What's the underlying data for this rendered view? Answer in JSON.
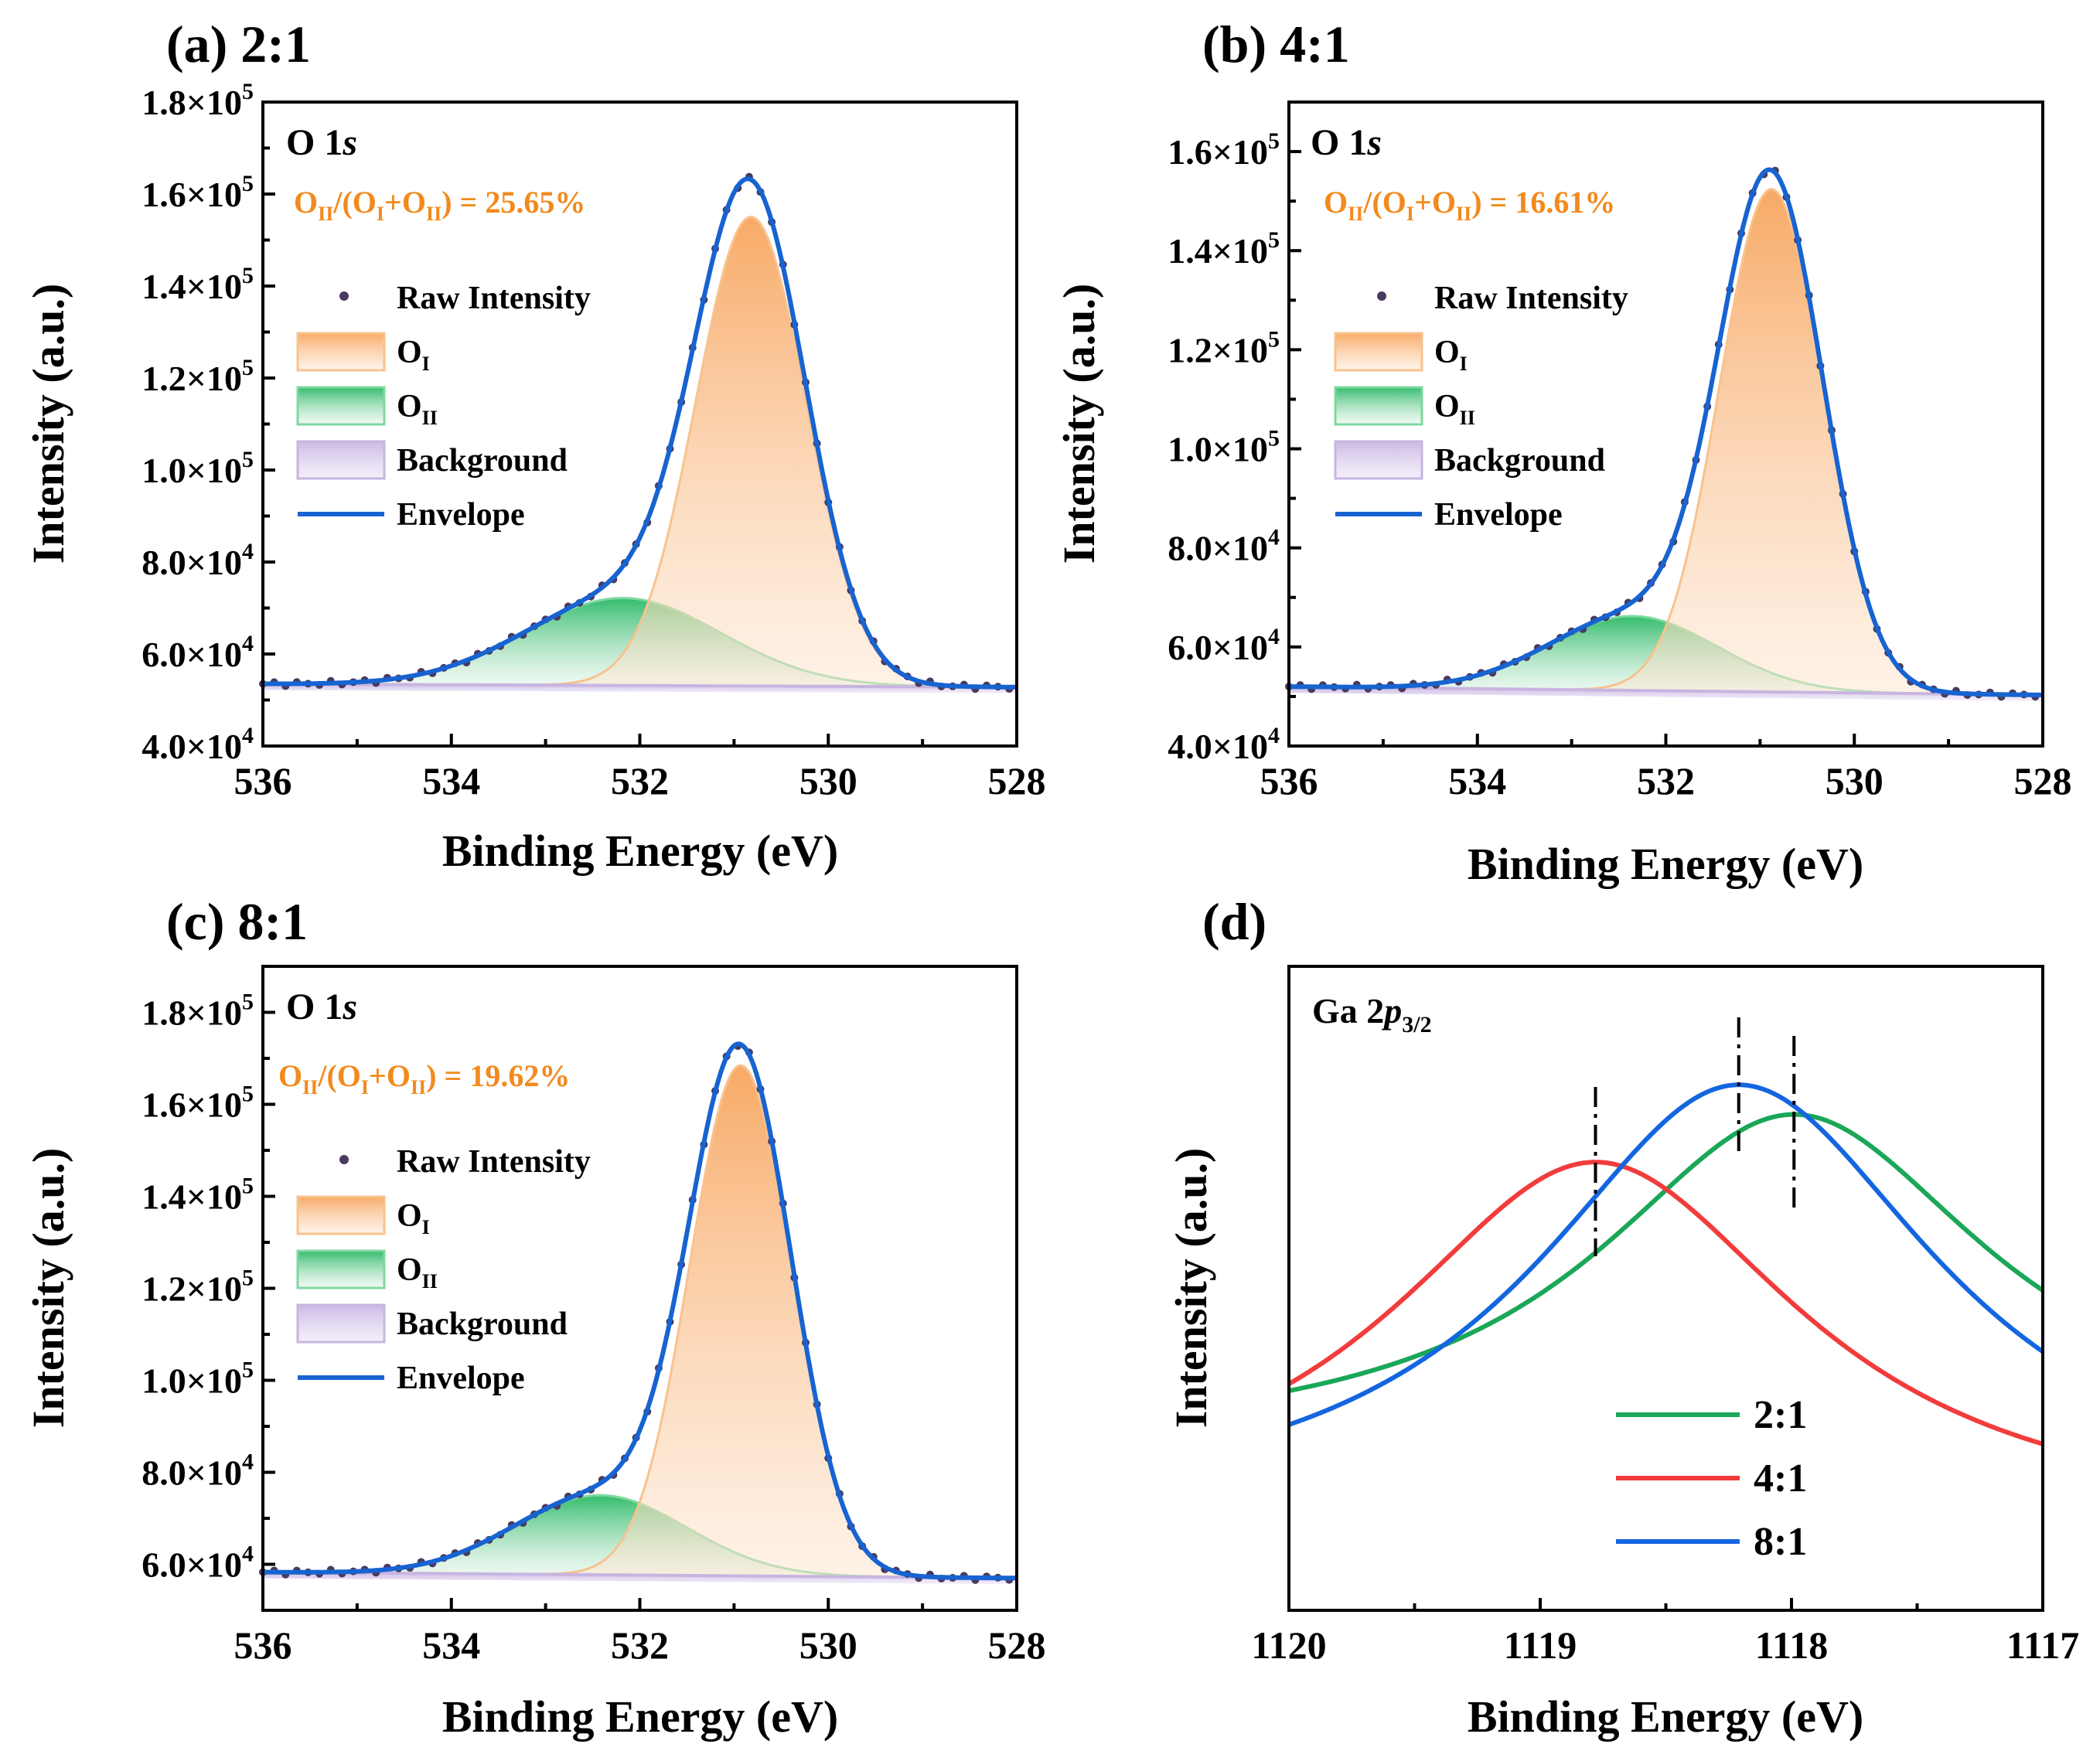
{
  "figure": {
    "xlabel": "Binding Energy (eV)",
    "ylabel": "Intensity (a.u.)"
  },
  "legend_o1s": {
    "raw": "Raw Intensity",
    "oi_main": "O",
    "oi_sub": "I",
    "oii_main": "O",
    "oii_sub": "II",
    "bg": "Background",
    "env": "Envelope"
  },
  "ratio_label": {
    "p1": "O",
    "s1": "II",
    "p2": "/(O",
    "s2": "I",
    "p3": "+O",
    "s3": "II",
    "p4": ") = "
  },
  "colors": {
    "envelope": "#1763d1",
    "oi_fill": "#f7a968",
    "oi_line": "#f7c38f",
    "oii_fill": "#2bb866",
    "oii_line": "#7fd8a0",
    "background": "#c7b5e0",
    "raw": "#4a3a5e",
    "ratio_text": "#f28a1e",
    "g21": "#1aa758",
    "g41": "#f23c3c",
    "g81": "#1466e0"
  },
  "chart_data": [
    {
      "type": "area",
      "panel": "(a)",
      "sample": "2:1",
      "title": "O 1s",
      "title_main": "O 1",
      "title_italic": "s",
      "ratio": "25.65%",
      "xlabel": "Binding Energy (eV)",
      "ylabel": "Intensity (a.u.)",
      "xlim": [
        536,
        528
      ],
      "ylim": [
        40000,
        180000
      ],
      "yticks": [
        40000,
        60000,
        80000,
        100000,
        120000,
        140000,
        160000,
        180000
      ],
      "ytick_labels": [
        [
          "4.0×10",
          "4"
        ],
        [
          "6.0×10",
          "4"
        ],
        [
          "8.0×10",
          "4"
        ],
        [
          "1.0×10",
          "5"
        ],
        [
          "1.2×10",
          "5"
        ],
        [
          "1.4×10",
          "5"
        ],
        [
          "1.6×10",
          "5"
        ],
        [
          "1.8×10",
          "5"
        ]
      ],
      "xticks": [
        536,
        534,
        532,
        530,
        528
      ],
      "xtick_labels": [
        "536",
        "534",
        "532",
        "530",
        "528"
      ],
      "background": {
        "start": 53500,
        "end": 52800
      },
      "OI": {
        "center": 530.82,
        "amplitude": 102000,
        "fwhm": 1.38
      },
      "OII": {
        "center": 532.18,
        "amplitude": 19000,
        "fwhm": 2.45
      },
      "series": [
        "Raw Intensity",
        "O_I",
        "O_II",
        "Background",
        "Envelope"
      ]
    },
    {
      "type": "area",
      "panel": "(b)",
      "sample": "4:1",
      "title": "O 1s",
      "title_main": "O 1",
      "title_italic": "s",
      "ratio": "16.61%",
      "xlabel": "Binding Energy (eV)",
      "ylabel": "Intensity (a.u.)",
      "xlim": [
        536,
        528
      ],
      "ylim": [
        40000,
        170000
      ],
      "yticks": [
        40000,
        60000,
        80000,
        100000,
        120000,
        140000,
        160000
      ],
      "ytick_labels": [
        [
          "4.0×10",
          "4"
        ],
        [
          "6.0×10",
          "4"
        ],
        [
          "8.0×10",
          "4"
        ],
        [
          "1.0×10",
          "5"
        ],
        [
          "1.2×10",
          "5"
        ],
        [
          "1.4×10",
          "5"
        ],
        [
          "1.6×10",
          "5"
        ]
      ],
      "xticks": [
        536,
        534,
        532,
        530,
        528
      ],
      "xtick_labels": [
        "536",
        "534",
        "532",
        "530",
        "528"
      ],
      "background": {
        "start": 52000,
        "end": 50300
      },
      "OI": {
        "center": 530.88,
        "amplitude": 101500,
        "fwhm": 1.3
      },
      "OII": {
        "center": 532.35,
        "amplitude": 15000,
        "fwhm": 2.1
      },
      "series": [
        "Raw Intensity",
        "O_I",
        "O_II",
        "Background",
        "Envelope"
      ]
    },
    {
      "type": "area",
      "panel": "(c)",
      "sample": "8:1",
      "title": "O 1s",
      "title_main": "O 1",
      "title_italic": "s",
      "ratio": "19.62%",
      "xlabel": "Binding Energy (eV)",
      "ylabel": "Intensity (a.u.)",
      "xlim": [
        536,
        528
      ],
      "ylim": [
        50000,
        190000
      ],
      "yticks": [
        60000,
        80000,
        100000,
        120000,
        140000,
        160000,
        180000
      ],
      "ytick_labels": [
        [
          "6.0×10",
          "4"
        ],
        [
          "8.0×10",
          "4"
        ],
        [
          "1.0×10",
          "5"
        ],
        [
          "1.2×10",
          "5"
        ],
        [
          "1.4×10",
          "5"
        ],
        [
          "1.6×10",
          "5"
        ],
        [
          "1.8×10",
          "5"
        ]
      ],
      "xticks": [
        536,
        534,
        532,
        530,
        528
      ],
      "xtick_labels": [
        "536",
        "534",
        "532",
        "530",
        "528"
      ],
      "background": {
        "start": 58300,
        "end": 57000
      },
      "OI": {
        "center": 530.93,
        "amplitude": 111000,
        "fwhm": 1.28
      },
      "OII": {
        "center": 532.42,
        "amplitude": 17300,
        "fwhm": 2.15
      },
      "series": [
        "Raw Intensity",
        "O_I",
        "O_II",
        "Background",
        "Envelope"
      ]
    },
    {
      "type": "line",
      "panel": "(d)",
      "title": "Ga 2p3/2",
      "title_main": "Ga 2",
      "title_italic": "p",
      "title_sub": "3/2",
      "xlabel": "Binding Energy (eV)",
      "ylabel": "Intensity (a.u.)",
      "xlim": [
        1120,
        1117
      ],
      "ylim": [
        0,
        1
      ],
      "xticks": [
        1120,
        1119,
        1118,
        1117
      ],
      "xtick_labels": [
        "1120",
        "1119",
        "1118",
        "1117"
      ],
      "series": [
        {
          "name": "2:1",
          "center": 1117.99,
          "peak": 0.77,
          "base": 0.245,
          "width": 0.95
        },
        {
          "name": "4:1",
          "center": 1118.78,
          "peak": 0.696,
          "base": 0.12,
          "width": 1.0
        },
        {
          "name": "8:1",
          "center": 1118.21,
          "peak": 0.816,
          "base": 0.13,
          "width": 0.98
        }
      ],
      "peak_markers": [
        1118.78,
        1118.21,
        1117.99
      ]
    }
  ]
}
